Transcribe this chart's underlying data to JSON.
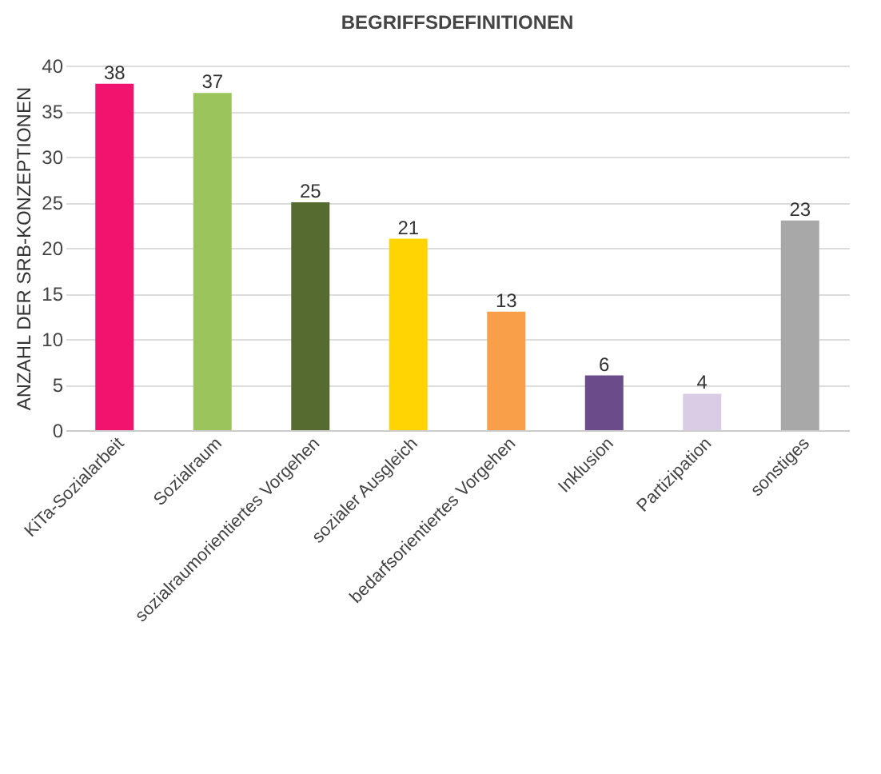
{
  "chart_data": {
    "type": "bar",
    "title": "BEGRIFFSDEFINITIONEN",
    "ylabel": "ANZAHL DER SRB-KONZEPTIONEN",
    "categories": [
      "KiTa-Sozialarbeit",
      "Sozialraum",
      "sozialraumorientiertes Vorgehen",
      "sozialer Ausgleich",
      "bedarfsorientiertes Vorgehen",
      "Inklusion",
      "Partizipation",
      "sonstiges"
    ],
    "values": [
      38,
      37,
      25,
      21,
      13,
      6,
      4,
      23
    ],
    "colors": [
      "#f0146e",
      "#9cc45c",
      "#566b30",
      "#ffd400",
      "#f99f4a",
      "#6b4b8a",
      "#d9cde5",
      "#a8a8a8"
    ],
    "ylim": [
      0,
      40
    ],
    "yticks": [
      0,
      5,
      10,
      15,
      20,
      25,
      30,
      35,
      40
    ],
    "grid": "y",
    "data_labels": true
  }
}
